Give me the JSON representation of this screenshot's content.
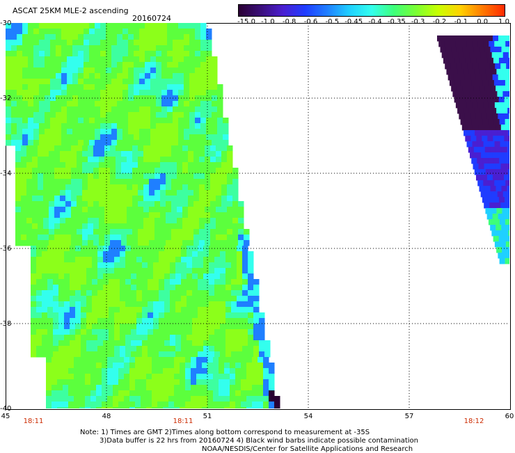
{
  "header": {
    "title": "ASCAT 25KM MLE-2 ascending",
    "date": "20160724"
  },
  "colorbar": {
    "labels": [
      "-15.0",
      "-1.0",
      "-0.8",
      "-0.6",
      "-0.5",
      "-0.45",
      "-0.4",
      "-0.35",
      "-0.3",
      "-0.2",
      "-0.1",
      "0.0",
      "1.0"
    ],
    "colors": [
      "#2a0033",
      "#3b0f7a",
      "#4a1fd1",
      "#1f3cff",
      "#1f7fff",
      "#1fd0ff",
      "#33ffee",
      "#3dff7a",
      "#7aff33",
      "#c8ff00",
      "#ffd200",
      "#ff7a00",
      "#ff2a00"
    ]
  },
  "axes": {
    "y_ticks": [
      "-30",
      "-32",
      "-34",
      "-36",
      "-38",
      "-40"
    ],
    "x_ticks": [
      "45",
      "48",
      "51",
      "54",
      "57",
      "60"
    ]
  },
  "times": [
    "18:11",
    "18:11",
    "18:12"
  ],
  "notes": {
    "line1": "Note: 1) Times are GMT 2)Times along bottom correspond to measurement at -35S",
    "line2": "3)Data buffer is 22 hrs from 20160724 4) Black wind barbs indicate possible contamination",
    "line3": "NOAA/NESDIS/Center for Satellite Applications and Research"
  }
}
